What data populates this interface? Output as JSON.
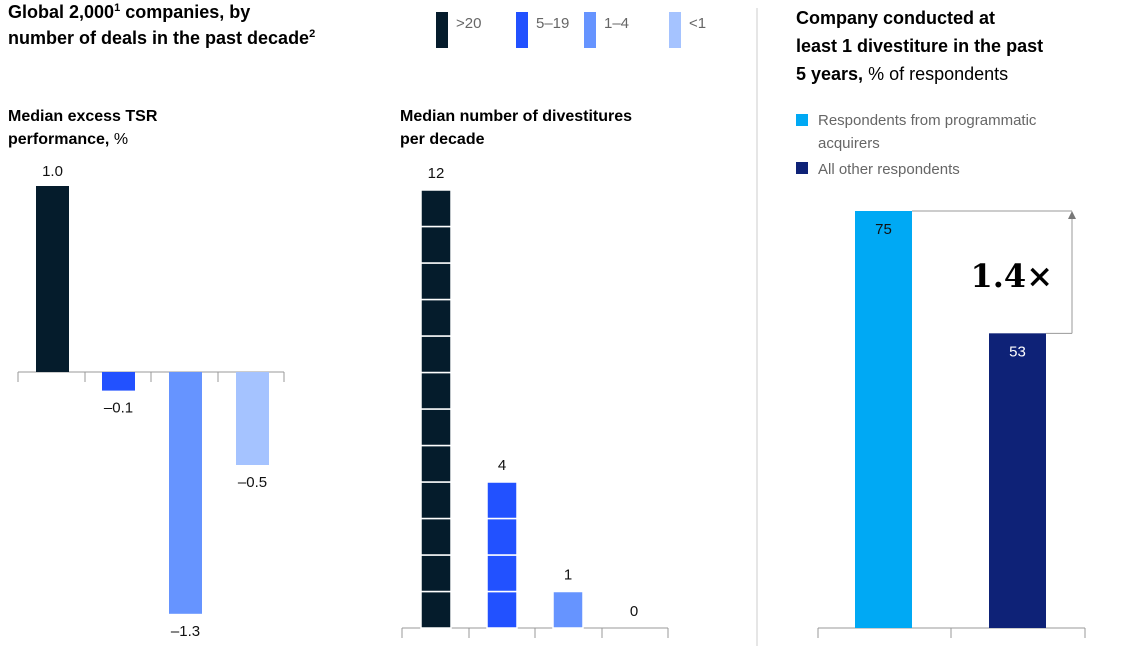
{
  "colors": {
    "dark": "#051c2c",
    "blue": "#2251ff",
    "mid": "#6694ff",
    "light": "#a5c3ff",
    "cyan": "#00a9f4",
    "navy": "#0e2277",
    "axis": "#999999"
  },
  "left_title_a": "Global 2,000",
  "left_title_sup1": "1",
  "left_title_b": " companies, by",
  "left_title_c": "number of deals in the past decade",
  "left_title_sup2": "2",
  "legend": [
    {
      "label": ">20",
      "color": "#051c2c"
    },
    {
      "label": "5–19",
      "color": "#2251ff"
    },
    {
      "label": "1–4",
      "color": "#6694ff"
    },
    {
      "label": "<1",
      "color": "#a5c3ff"
    }
  ],
  "right_title_l1": "Company conducted at",
  "right_title_l2": "least 1 divestiture in the past",
  "right_title_l3_bold": "5 years,",
  "right_title_l3_rest": " % of respondents",
  "right_legend": [
    {
      "label_l1": "Respondents from programmatic",
      "label_l2": "acquirers",
      "color": "#00a9f4"
    },
    {
      "label_l1": "All other respondents",
      "label_l2": "",
      "color": "#0e2277"
    }
  ],
  "multiplier": "1.4×",
  "chart_data": [
    {
      "type": "bar",
      "title_bold": "Median excess TSR",
      "title_bold2": "performance,",
      "title_rest": " %",
      "categories": [
        ">20",
        "5–19",
        "1–4",
        "<1"
      ],
      "values": [
        1.0,
        -0.1,
        -1.3,
        -0.5
      ],
      "labels": [
        "1.0",
        "–0.1",
        "–1.3",
        "–0.5"
      ]
    },
    {
      "type": "bar",
      "title_l1": "Median number of divestitures",
      "title_l2": "per decade",
      "categories": [
        ">20",
        "5–19",
        "1–4",
        "<1"
      ],
      "values": [
        12,
        4,
        1,
        0
      ],
      "labels": [
        "12",
        "4",
        "1",
        "0"
      ]
    },
    {
      "type": "bar",
      "categories": [
        "Respondents from programmatic acquirers",
        "All other respondents"
      ],
      "values": [
        75,
        53
      ],
      "labels": [
        "75",
        "53"
      ]
    }
  ]
}
